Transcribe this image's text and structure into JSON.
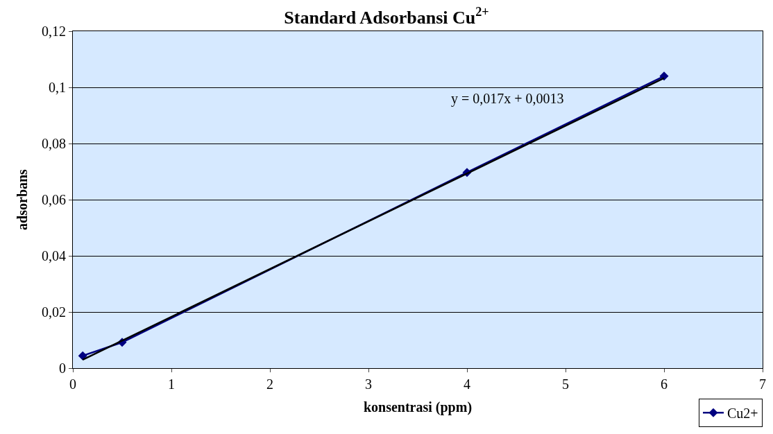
{
  "chart_data": {
    "type": "line",
    "title": "Standard Adsorbansi Cu$^{2+}$",
    "xlabel": "konsentrasi (ppm)",
    "ylabel": "adsorbans",
    "x": [
      0.1,
      0.5,
      4,
      6
    ],
    "series": [
      {
        "name": "Cu2+",
        "color": "#000080",
        "values": [
          0.0044,
          0.0092,
          0.0697,
          0.104
        ],
        "marker": "diamond",
        "line_style": "solid"
      },
      {
        "type": "line",
        "color": "#000000",
        "x": [
          0.1,
          6
        ],
        "values": [
          0.003,
          0.1033
        ],
        "marker": "none",
        "line_style": "solid"
      }
    ],
    "annotations": [
      "y = 0,017x + 0,0013"
    ],
    "xlim": [
      0,
      7
    ],
    "xticks": [
      0,
      1,
      2,
      3,
      4,
      5,
      6,
      7
    ],
    "ylim": [
      0,
      0.12
    ],
    "yticks": [
      {
        "value": 0,
        "label": "0"
      },
      {
        "value": 0.02,
        "label": "0,02"
      },
      {
        "value": 0.04,
        "label": "0,04"
      },
      {
        "value": 0.06,
        "label": "0,06"
      },
      {
        "value": 0.08,
        "label": "0,08"
      },
      {
        "value": 0.1,
        "label": "0,1"
      },
      {
        "value": 0.12,
        "label": "0,12"
      }
    ],
    "grid": "y",
    "legend": "bottom right"
  }
}
